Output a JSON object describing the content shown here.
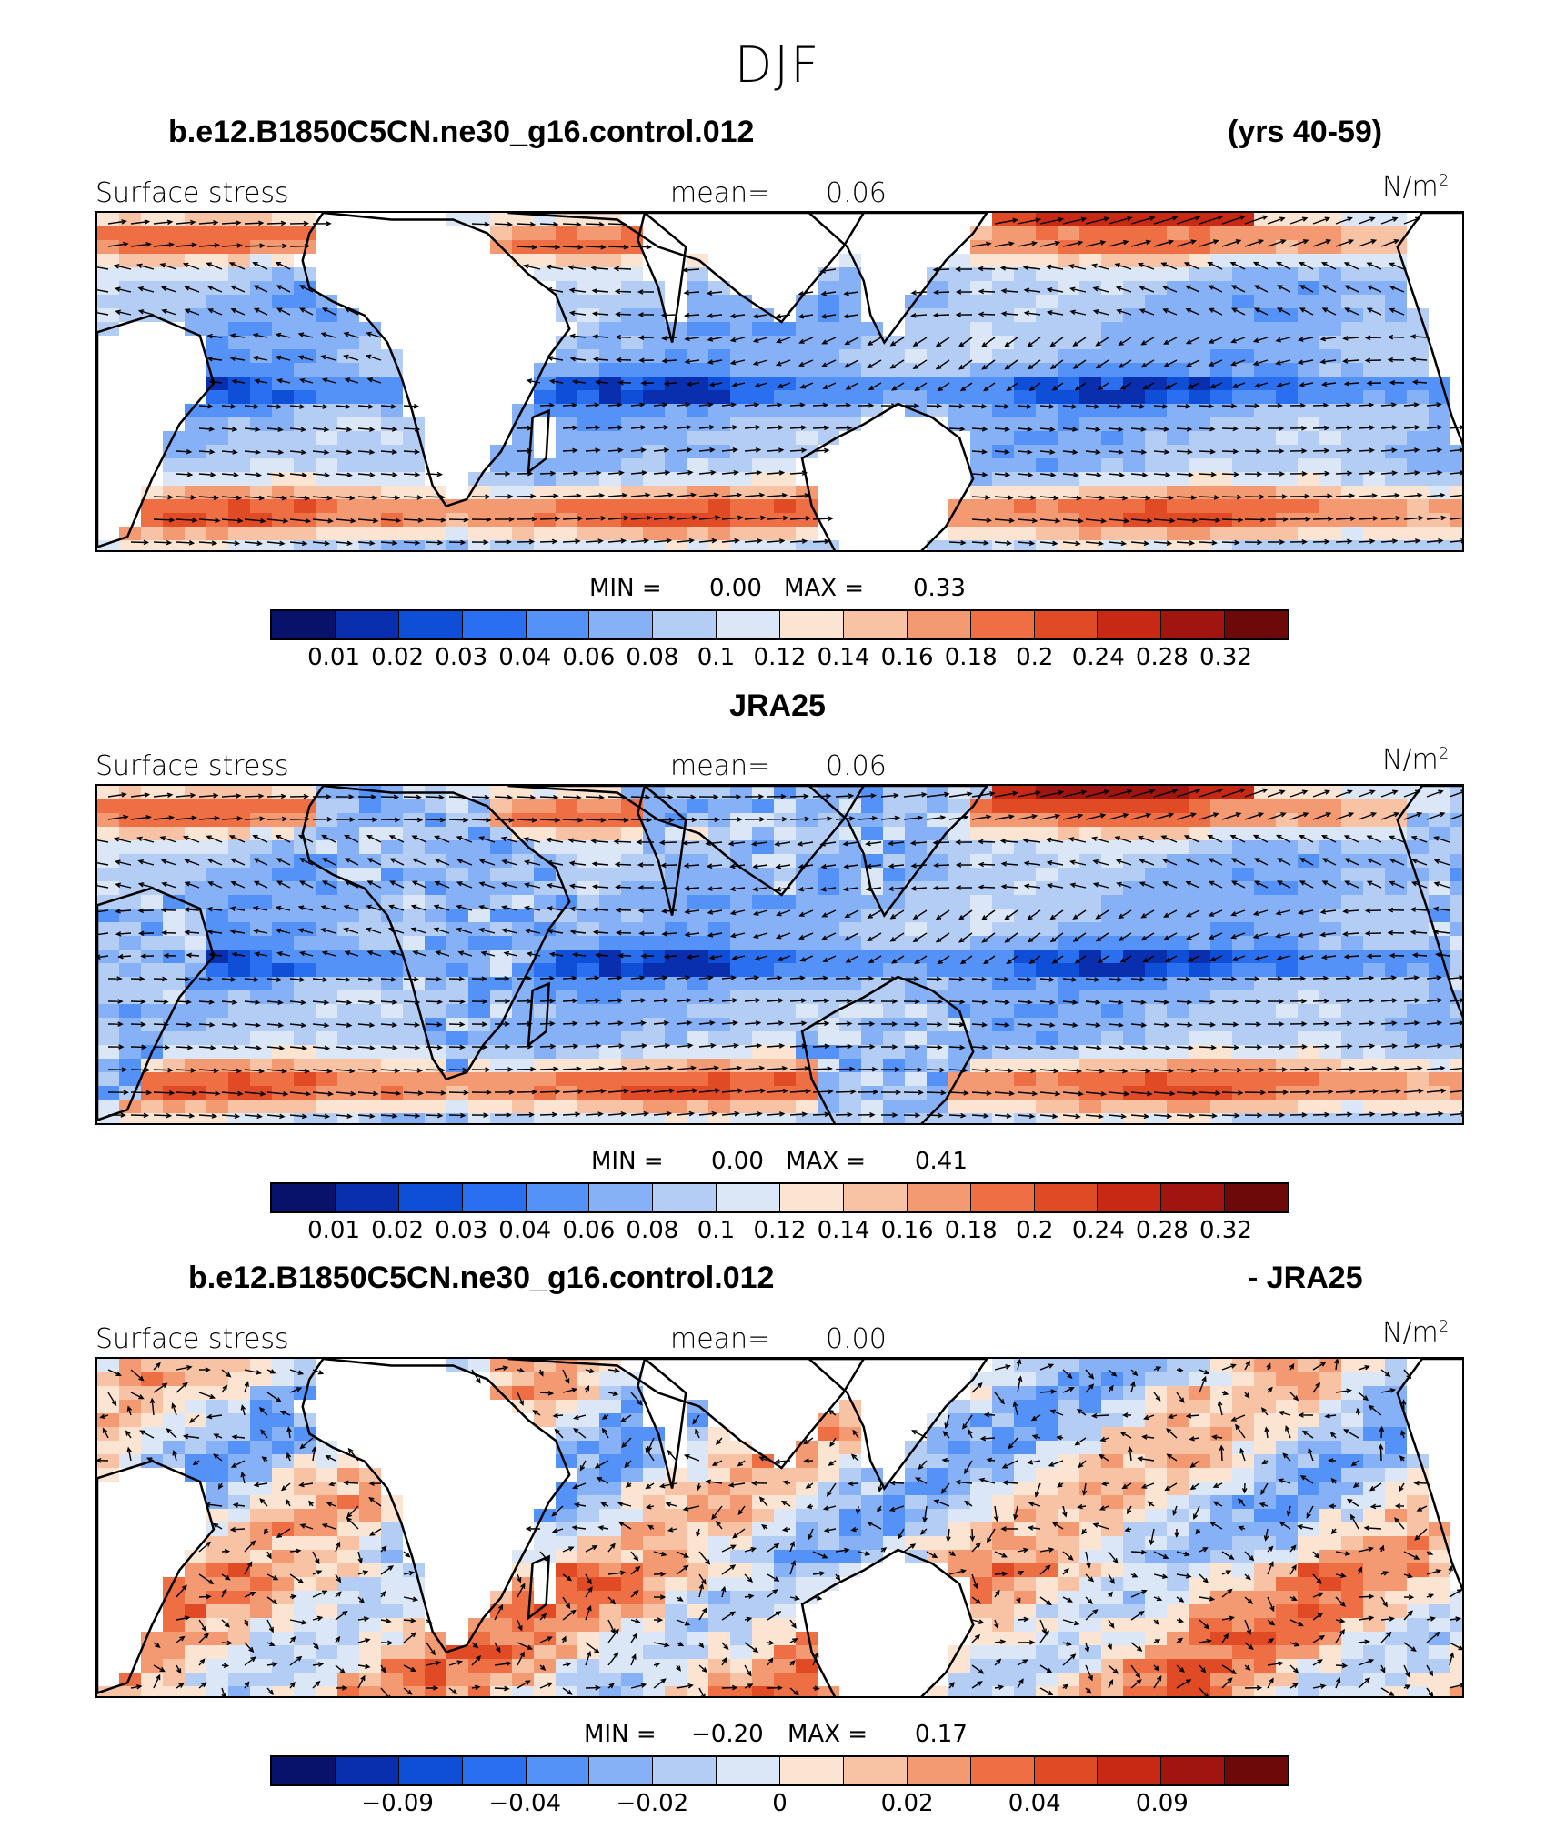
{
  "figure": {
    "title": "DJF"
  },
  "colorbar_colors": [
    "#08126b",
    "#0a2fae",
    "#0f4ed6",
    "#2a6ff0",
    "#5592f7",
    "#86b1f7",
    "#b3cdf5",
    "#dbe7f6",
    "#fbe4d2",
    "#f8c3a5",
    "#f49a72",
    "#ef6f45",
    "#e04a25",
    "#c72915",
    "#a01510",
    "#6e0909"
  ],
  "panels": [
    {
      "title_left": "b.e12.B1850C5CN.ne30_g16.control.012",
      "title_right": "(yrs 40-59)",
      "variable": "Surface stress",
      "mean_label": "mean=",
      "mean_value": "0.06",
      "unit_base": "N/m",
      "unit_exp": "2",
      "min_label": "MIN =",
      "min_value": "0.00",
      "max_label": "MAX =",
      "max_value": "0.33",
      "colorbar_ticks": [
        "0.01",
        "0.02",
        "0.03",
        "0.04",
        "0.06",
        "0.08",
        "0.1",
        "0.12",
        "0.14",
        "0.16",
        "0.18",
        "0.2",
        "0.24",
        "0.28",
        "0.32"
      ],
      "field": "magnitude"
    },
    {
      "title_center": "JRA25",
      "variable": "Surface stress",
      "mean_label": "mean=",
      "mean_value": "0.06",
      "unit_base": "N/m",
      "unit_exp": "2",
      "min_label": "MIN =",
      "min_value": "0.00",
      "max_label": "MAX =",
      "max_value": "0.41",
      "colorbar_ticks": [
        "0.01",
        "0.02",
        "0.03",
        "0.04",
        "0.06",
        "0.08",
        "0.1",
        "0.12",
        "0.14",
        "0.16",
        "0.18",
        "0.2",
        "0.24",
        "0.28",
        "0.32"
      ],
      "field": "magnitude"
    },
    {
      "title_left": "b.e12.B1850C5CN.ne30_g16.control.012",
      "title_right": "- JRA25",
      "variable": "Surface stress",
      "mean_label": "mean=",
      "mean_value": "0.00",
      "unit_base": "N/m",
      "unit_exp": "2",
      "min_label": "MIN =",
      "min_value": "−0.20",
      "max_label": "MAX =",
      "max_value": "0.17",
      "colorbar_ticks": [
        "−0.09",
        "−0.04",
        "−0.02",
        "0",
        "0.02",
        "0.04",
        "0.09"
      ],
      "field": "difference"
    }
  ]
}
